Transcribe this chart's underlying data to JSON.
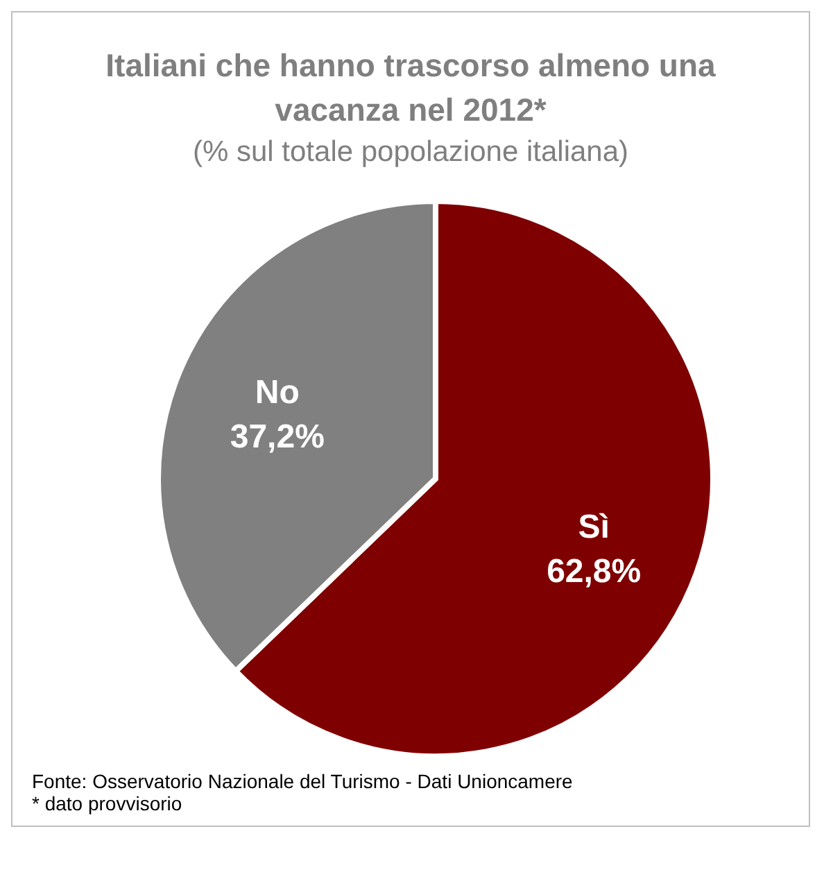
{
  "chart_data": {
    "type": "pie",
    "title": "Italiani che hanno trascorso almeno una vacanza nel 2012*",
    "subtitle": "(% sul totale popolazione italiana)",
    "categories": [
      "Sì",
      "No"
    ],
    "values": [
      62.8,
      37.2
    ],
    "value_labels": [
      "62,8%",
      "37,2%"
    ],
    "colors": [
      "#7f0000",
      "#808080"
    ],
    "legend": false,
    "annotations": [
      "Fonte: Osservatorio Nazionale del Turismo - Dati Unioncamere",
      "* dato provvisorio"
    ]
  }
}
